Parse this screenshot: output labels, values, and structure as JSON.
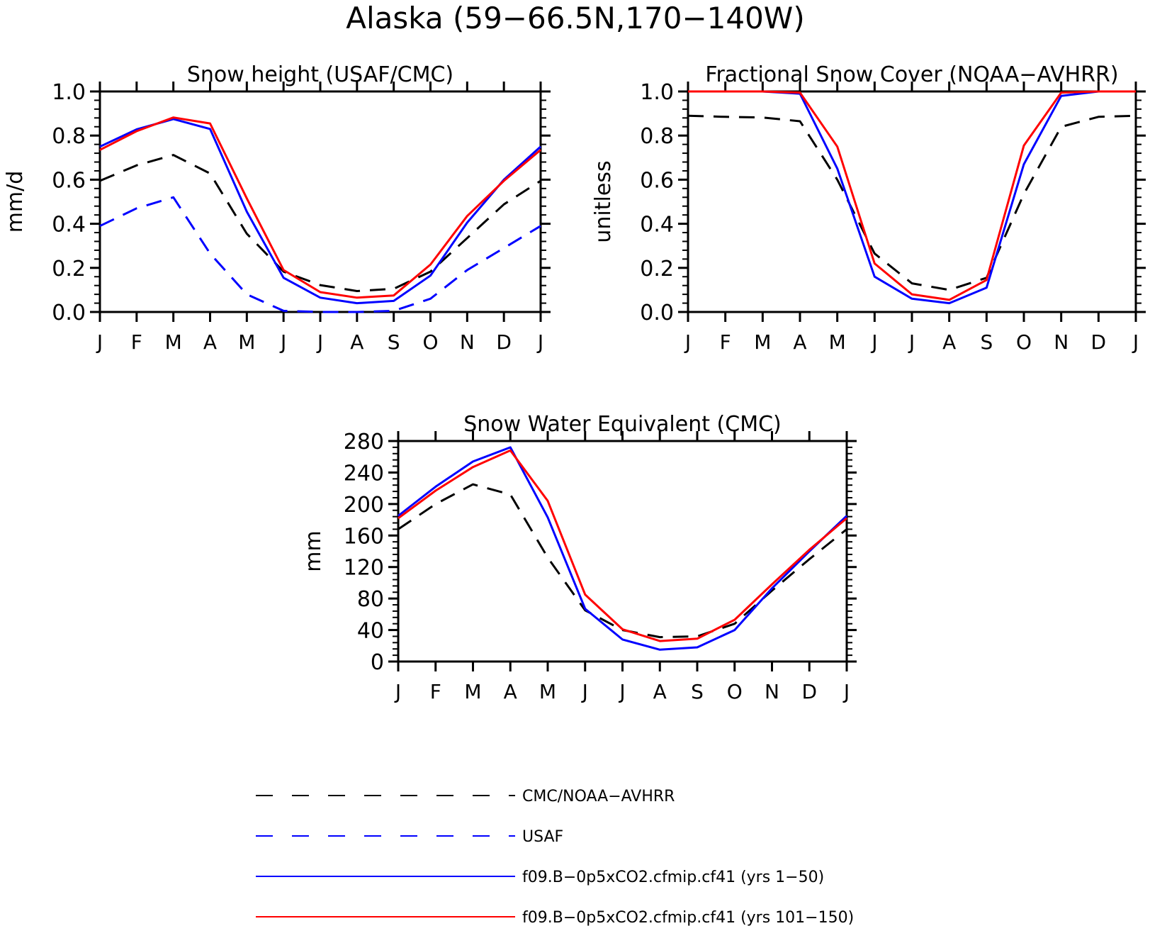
{
  "figure": {
    "title": "Alaska (59−66.5N,170−140W)"
  },
  "chart_data": [
    {
      "type": "line",
      "title": "Snow height (USAF/CMC)",
      "ylabel": "mm/d",
      "xlabel": "",
      "ylim": [
        0,
        1.0
      ],
      "yticks": [
        "0.0",
        "0.2",
        "0.4",
        "0.6",
        "0.8",
        "1.0"
      ],
      "ytick_values": [
        0,
        0.2,
        0.4,
        0.6,
        0.8,
        1.0
      ],
      "categories": [
        "J",
        "F",
        "M",
        "A",
        "M",
        "J",
        "J",
        "A",
        "S",
        "O",
        "N",
        "D",
        "J"
      ],
      "series": [
        {
          "name": "CMC/NOAA-AVHRR",
          "color": "#000000",
          "dashed": true,
          "values": [
            0.595,
            0.665,
            0.712,
            0.628,
            0.355,
            0.183,
            0.122,
            0.095,
            0.105,
            0.183,
            0.335,
            0.488,
            0.595
          ]
        },
        {
          "name": "USAF",
          "color": "#0000ff",
          "dashed": true,
          "values": [
            0.39,
            0.47,
            0.52,
            0.265,
            0.08,
            0.005,
            0.0,
            0.0,
            0.005,
            0.06,
            0.19,
            0.29,
            0.39
          ]
        },
        {
          "name": "f09.B−0p5xCO2.cfmip.cf41 (yrs 1−50)",
          "color": "#0000ff",
          "dashed": false,
          "values": [
            0.75,
            0.828,
            0.875,
            0.83,
            0.455,
            0.155,
            0.065,
            0.04,
            0.05,
            0.165,
            0.405,
            0.6,
            0.75
          ]
        },
        {
          "name": "f09.B−0p5xCO2.cfmip.cf41 (yrs 101−150)",
          "color": "#ff0000",
          "dashed": false,
          "values": [
            0.735,
            0.82,
            0.882,
            0.855,
            0.515,
            0.19,
            0.09,
            0.065,
            0.075,
            0.215,
            0.435,
            0.595,
            0.735
          ]
        }
      ]
    },
    {
      "type": "line",
      "title": "Fractional Snow Cover (NOAA−AVHRR)",
      "ylabel": "unitless",
      "xlabel": "",
      "ylim": [
        0,
        1.0
      ],
      "yticks": [
        "0.0",
        "0.2",
        "0.4",
        "0.6",
        "0.8",
        "1.0"
      ],
      "ytick_values": [
        0,
        0.2,
        0.4,
        0.6,
        0.8,
        1.0
      ],
      "categories": [
        "J",
        "F",
        "M",
        "A",
        "M",
        "J",
        "J",
        "A",
        "S",
        "O",
        "N",
        "D",
        "J"
      ],
      "series": [
        {
          "name": "CMC/NOAA-AVHRR",
          "color": "#000000",
          "dashed": true,
          "values": [
            0.89,
            0.885,
            0.882,
            0.865,
            0.6,
            0.265,
            0.13,
            0.1,
            0.155,
            0.535,
            0.84,
            0.885,
            0.89
          ]
        },
        {
          "name": "f09.B−0p5xCO2.cfmip.cf41 (yrs 1−50)",
          "color": "#0000ff",
          "dashed": false,
          "values": [
            1.0,
            1.0,
            1.0,
            0.99,
            0.65,
            0.16,
            0.06,
            0.04,
            0.11,
            0.67,
            0.98,
            1.0,
            1.0
          ]
        },
        {
          "name": "f09.B−0p5xCO2.cfmip.cf41 (yrs 101−150)",
          "color": "#ff0000",
          "dashed": false,
          "values": [
            1.0,
            1.0,
            1.0,
            0.995,
            0.75,
            0.22,
            0.08,
            0.055,
            0.145,
            0.755,
            0.995,
            1.0,
            1.0
          ]
        }
      ]
    },
    {
      "type": "line",
      "title": "Snow Water Equivalent (CMC)",
      "ylabel": "mm",
      "xlabel": "",
      "ylim": [
        0,
        280
      ],
      "yticks": [
        "0",
        "40",
        "80",
        "120",
        "160",
        "200",
        "240",
        "280"
      ],
      "ytick_values": [
        0,
        40,
        80,
        120,
        160,
        200,
        240,
        280
      ],
      "categories": [
        "J",
        "F",
        "M",
        "A",
        "M",
        "J",
        "J",
        "A",
        "S",
        "O",
        "N",
        "D",
        "J"
      ],
      "series": [
        {
          "name": "CMC/NOAA-AVHRR",
          "color": "#000000",
          "dashed": true,
          "values": [
            168,
            200,
            225,
            212,
            132,
            65,
            40,
            31,
            32,
            48,
            90,
            130,
            168
          ]
        },
        {
          "name": "f09.B−0p5xCO2.cfmip.cf41 (yrs 1−50)",
          "color": "#0000ff",
          "dashed": false,
          "values": [
            185,
            222,
            254,
            272,
            183,
            67,
            28,
            15,
            18,
            40,
            93,
            140,
            185
          ]
        },
        {
          "name": "f09.B−0p5xCO2.cfmip.cf41 (yrs 101−150)",
          "color": "#ff0000",
          "dashed": false,
          "values": [
            182,
            217,
            247,
            268,
            204,
            85,
            41,
            26,
            29,
            53,
            98,
            142,
            182
          ]
        }
      ]
    }
  ],
  "legend": {
    "items": [
      {
        "label": "CMC/NOAA−AVHRR",
        "color": "#000000",
        "dashed": true
      },
      {
        "label": "USAF",
        "color": "#0000ff",
        "dashed": true
      },
      {
        "label": "f09.B−0p5xCO2.cfmip.cf41 (yrs 1−50)",
        "color": "#0000ff",
        "dashed": false
      },
      {
        "label": "f09.B−0p5xCO2.cfmip.cf41 (yrs 101−150)",
        "color": "#ff0000",
        "dashed": false
      }
    ]
  }
}
